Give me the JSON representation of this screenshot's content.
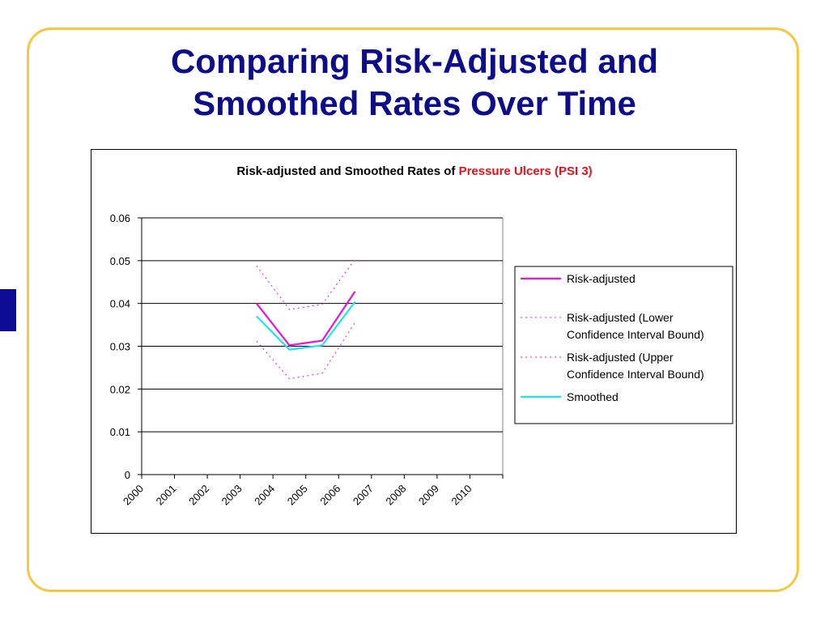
{
  "slide": {
    "title_line1": "Comparing Risk-Adjusted and",
    "title_line2": "Smoothed Rates Over Time"
  },
  "chart_data": {
    "type": "line",
    "title_prefix": "Risk-adjusted and Smoothed Rates of ",
    "title_highlight": "Pressure Ulcers (PSI 3)",
    "title_highlight_color": "#e8101a",
    "xlabel": "",
    "ylabel": "",
    "ylim": [
      0,
      0.06
    ],
    "yticks": [
      "0",
      "0.01",
      "0.02",
      "0.03",
      "0.04",
      "0.05",
      "0.06"
    ],
    "categories": [
      "2000",
      "2001",
      "2002",
      "2003",
      "2004",
      "2005",
      "2006",
      "2007",
      "2008",
      "2009",
      "2010"
    ],
    "grid": true,
    "legend_position": "right",
    "series": [
      {
        "name": "Risk-adjusted",
        "color": "#e815d8",
        "style": "solid",
        "values": [
          null,
          null,
          null,
          0.04,
          0.0302,
          0.0313,
          0.0428,
          null,
          null,
          null,
          null
        ]
      },
      {
        "name": "Risk-adjusted (Lower Confidence Interval Bound)",
        "name_lines": [
          "Risk-adjusted (Lower",
          "Confidence Interval Bound)"
        ],
        "color": "#e815d8",
        "style": "dotted",
        "values": [
          null,
          null,
          null,
          0.0312,
          0.0224,
          0.0237,
          0.0355,
          null,
          null,
          null,
          null
        ]
      },
      {
        "name": "Risk-adjusted (Upper Confidence Interval Bound)",
        "name_lines": [
          "Risk-adjusted (Upper",
          "Confidence Interval Bound)"
        ],
        "color": "#e815d8",
        "style": "dotted",
        "values": [
          null,
          null,
          null,
          0.0488,
          0.0386,
          0.0398,
          0.0503,
          null,
          null,
          null,
          null
        ]
      },
      {
        "name": "Smoothed",
        "color": "#19e6f0",
        "style": "solid",
        "values": [
          null,
          null,
          null,
          0.037,
          0.0292,
          0.0302,
          0.0404,
          null,
          null,
          null,
          null
        ]
      }
    ]
  }
}
